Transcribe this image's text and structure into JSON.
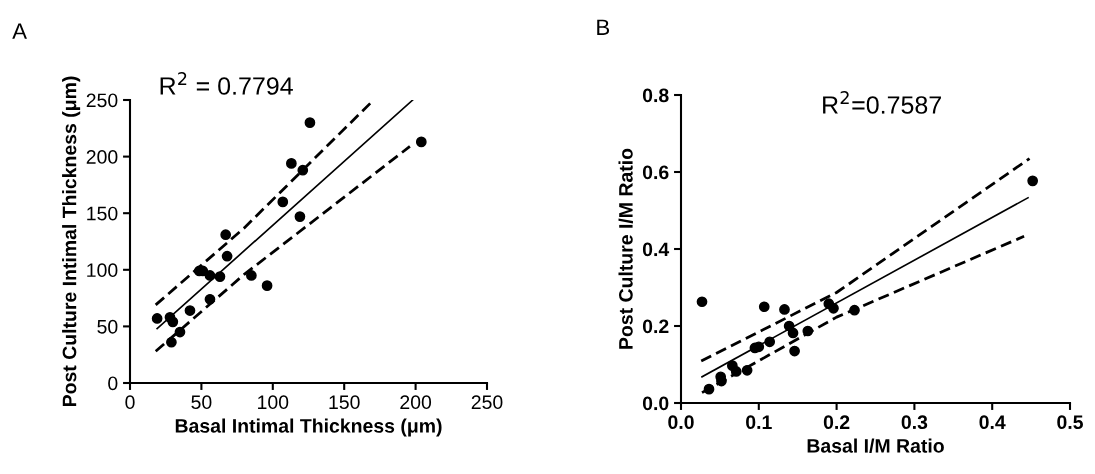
{
  "chart_data": [
    {
      "type": "scatter",
      "title": "A",
      "xlabel": "Basal Intimal Thickness (μm)",
      "ylabel": "Post Culture Intimal Thickness (μm)",
      "annotations": [
        "R$^{2}$ = 0.7794"
      ],
      "xlim": [
        0,
        250
      ],
      "xticks": [
        0,
        50,
        100,
        150,
        200,
        250
      ],
      "ylim": [
        0,
        250
      ],
      "yticks": [
        0,
        50,
        100,
        150,
        200,
        250
      ],
      "grid": false,
      "legend": false,
      "series": [
        {
          "color": "#000000",
          "marker": "circle",
          "x": [
            19,
            28,
            30,
            29,
            35,
            42,
            48.5,
            51,
            56,
            56,
            63,
            67,
            68,
            85,
            96,
            107,
            113,
            121,
            119,
            126,
            204
          ],
          "values": [
            57,
            58,
            54,
            36,
            45,
            64,
            99,
            99,
            95,
            74,
            94,
            131,
            112,
            95,
            86,
            160,
            194,
            188,
            147,
            230,
            213
          ]
        },
        {
          "type": "line",
          "color": "#000000",
          "line_style": "solid",
          "x": [
            19,
            198
          ],
          "values": [
            48,
            250
          ]
        },
        {
          "type": "line",
          "color": "#000000",
          "line_style": "dashed",
          "x": [
            18,
            80,
            169
          ],
          "values": [
            69,
            137,
            248
          ]
        },
        {
          "type": "line",
          "color": "#000000",
          "line_style": "dashed",
          "x": [
            18,
            80,
            196
          ],
          "values": [
            28,
            96,
            209
          ]
        }
      ]
    },
    {
      "type": "scatter",
      "title": "B",
      "xlabel": "Basal I/M Ratio",
      "ylabel": "Post Culture I/M Ratio",
      "annotations": [
        "R$^{2}$=0.7587"
      ],
      "xlim": [
        0,
        0.5
      ],
      "xticks": [
        {
          "value": 0,
          "label": "0.0"
        },
        0.1,
        0.2,
        0.3,
        0.4,
        0.5
      ],
      "ylim": [
        0,
        0.8
      ],
      "yticks": [
        {
          "value": 0,
          "label": "0.0"
        },
        0.2,
        0.4,
        0.6,
        0.8
      ],
      "grid": false,
      "legend": false,
      "series": [
        {
          "color": "#000000",
          "marker": "circle",
          "x": [
            0.027,
            0.036,
            0.051,
            0.052,
            0.066,
            0.071,
            0.085,
            0.095,
            0.1,
            0.107,
            0.114,
            0.133,
            0.139,
            0.144,
            0.146,
            0.163,
            0.19,
            0.196,
            0.223,
            0.452
          ],
          "values": [
            0.263,
            0.036,
            0.068,
            0.057,
            0.097,
            0.082,
            0.085,
            0.143,
            0.146,
            0.25,
            0.159,
            0.243,
            0.2,
            0.182,
            0.135,
            0.187,
            0.258,
            0.246,
            0.241,
            0.577
          ]
        },
        {
          "type": "line",
          "color": "#000000",
          "line_style": "solid",
          "x": [
            0.027,
            0.446
          ],
          "values": [
            0.068,
            0.533
          ]
        },
        {
          "type": "line",
          "color": "#000000",
          "line_style": "dashed",
          "x": [
            0.026,
            0.2,
            0.448
          ],
          "values": [
            0.109,
            0.287,
            0.635
          ]
        },
        {
          "type": "line",
          "color": "#000000",
          "line_style": "dashed",
          "x": [
            0.027,
            0.2,
            0.441
          ],
          "values": [
            0.027,
            0.223,
            0.433
          ]
        }
      ]
    }
  ]
}
